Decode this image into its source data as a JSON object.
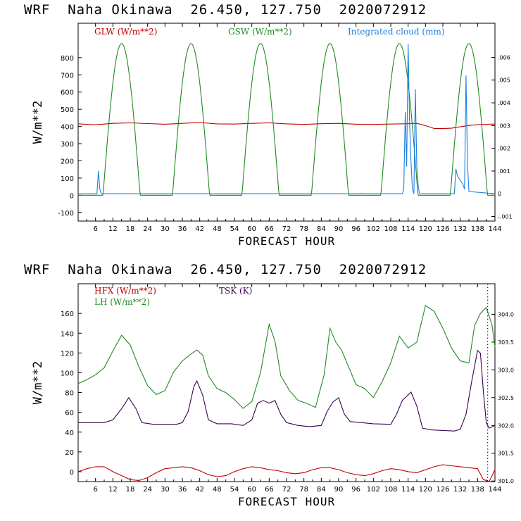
{
  "titles": {
    "top": "WRF  Naha Okinawa  26.450, 127.750  2020072912",
    "bottom": "WRF  Naha Okinawa  26.450, 127.750  2020072912"
  },
  "colors": {
    "red": "#c00000",
    "green": "#218a21",
    "blue": "#1c7fe0",
    "purple": "#3c0050",
    "frame": "#000000"
  },
  "chart_data": [
    {
      "type": "line",
      "xlabel": "FORECAST HOUR",
      "ylabel": "W/m**2",
      "xlim": [
        0,
        144
      ],
      "ylim": [
        -150,
        1000
      ],
      "yticks": [
        "-100",
        "0",
        "100",
        "200",
        "300",
        "400",
        "500",
        "600",
        "700",
        "800"
      ],
      "y2lim": [
        -0.0012,
        0.0075
      ],
      "y2ticks": [
        "-.001",
        "0",
        ".001",
        ".002",
        ".003",
        ".004",
        ".005",
        ".006"
      ],
      "xticks": [
        "6",
        "12",
        "18",
        "24",
        "30",
        "36",
        "42",
        "48",
        "54",
        "60",
        "66",
        "72",
        "78",
        "84",
        "90",
        "96",
        "102",
        "108",
        "114",
        "120",
        "126",
        "132",
        "138",
        "144"
      ],
      "series": [
        {
          "name": "GLW (W/m**2)",
          "axis": "left",
          "color": "#c00000",
          "points": [
            [
              0,
              415
            ],
            [
              6,
              410
            ],
            [
              12,
              418
            ],
            [
              18,
              421
            ],
            [
              24,
              417
            ],
            [
              30,
              413
            ],
            [
              36,
              418
            ],
            [
              42,
              423
            ],
            [
              48,
              415
            ],
            [
              54,
              414
            ],
            [
              60,
              418
            ],
            [
              66,
              421
            ],
            [
              72,
              415
            ],
            [
              78,
              412
            ],
            [
              84,
              416
            ],
            [
              90,
              418
            ],
            [
              96,
              413
            ],
            [
              102,
              412
            ],
            [
              108,
              414
            ],
            [
              114,
              416
            ],
            [
              117,
              418
            ],
            [
              120,
              405
            ],
            [
              123,
              388
            ],
            [
              126,
              388
            ],
            [
              129,
              390
            ],
            [
              132,
              398
            ],
            [
              136,
              408
            ],
            [
              140,
              412
            ],
            [
              144,
              414
            ]
          ]
        },
        {
          "name": "GSW (W/m**2)",
          "axis": "left",
          "color": "#218a21",
          "cycles": {
            "peaks": [
              15,
              39,
              63,
              87,
              111,
              135
            ],
            "halfwidth": 6.4,
            "peak": 882
          }
        },
        {
          "name": "Integrated cloud (mm)",
          "axis": "right",
          "color": "#1c7fe0",
          "points": [
            [
              0,
              0
            ],
            [
              6.5,
              0
            ],
            [
              7,
              0.001
            ],
            [
              7.5,
              0.0002
            ],
            [
              8,
              0
            ],
            [
              97,
              0
            ],
            [
              97.5,
              3e-05
            ],
            [
              98,
              0
            ],
            [
              112,
              0
            ],
            [
              112.5,
              0.0002
            ],
            [
              113,
              0.0036
            ],
            [
              113.5,
              0.0012
            ],
            [
              114,
              0.0066
            ],
            [
              114.5,
              0.0032
            ],
            [
              115,
              0.0014
            ],
            [
              115.5,
              0.0002
            ],
            [
              116,
              0
            ],
            [
              116.5,
              0.0046
            ],
            [
              117,
              0.0012
            ],
            [
              117.5,
              0.0003
            ],
            [
              118,
              0
            ],
            [
              130,
              0
            ],
            [
              130.5,
              0.0011
            ],
            [
              131,
              0.0008
            ],
            [
              132,
              0.0006
            ],
            [
              133,
              0.0004
            ],
            [
              133.5,
              0.0002
            ],
            [
              134,
              0.0052
            ],
            [
              134.5,
              0.0014
            ],
            [
              135,
              0.0001
            ],
            [
              144,
              0
            ]
          ]
        }
      ]
    },
    {
      "type": "line",
      "xlabel": "FORECAST HOUR",
      "ylabel": "W/m**2",
      "xlim": [
        0,
        144
      ],
      "ylim": [
        -10,
        190
      ],
      "yticks": [
        "0",
        "20",
        "40",
        "60",
        "80",
        "100",
        "120",
        "140",
        "160"
      ],
      "y2lim": [
        300.99,
        304.55
      ],
      "y2ticks": [
        "301.0",
        "301.5",
        "302.0",
        "302.5",
        "303.0",
        "303.5",
        "304.0"
      ],
      "xticks": [
        "6",
        "12",
        "18",
        "24",
        "30",
        "36",
        "42",
        "48",
        "54",
        "60",
        "66",
        "72",
        "78",
        "84",
        "90",
        "96",
        "102",
        "108",
        "114",
        "120",
        "126",
        "132",
        "138",
        "144"
      ],
      "series": [
        {
          "name": "HFX (W/m**2)",
          "axis": "left",
          "color": "#c00000",
          "points": [
            [
              0,
              0
            ],
            [
              3,
              3
            ],
            [
              6,
              5
            ],
            [
              9,
              5
            ],
            [
              12,
              0
            ],
            [
              15,
              -4
            ],
            [
              18,
              -8
            ],
            [
              21,
              -9
            ],
            [
              24,
              -6
            ],
            [
              27,
              -1
            ],
            [
              30,
              3
            ],
            [
              33,
              4
            ],
            [
              36,
              5
            ],
            [
              39,
              4
            ],
            [
              42,
              1
            ],
            [
              45,
              -3
            ],
            [
              48,
              -5
            ],
            [
              51,
              -4
            ],
            [
              54,
              0
            ],
            [
              57,
              3
            ],
            [
              60,
              5
            ],
            [
              63,
              4
            ],
            [
              66,
              2
            ],
            [
              69,
              1
            ],
            [
              72,
              -1
            ],
            [
              75,
              -2
            ],
            [
              78,
              -1
            ],
            [
              81,
              2
            ],
            [
              84,
              4
            ],
            [
              87,
              4
            ],
            [
              90,
              2
            ],
            [
              93,
              -1
            ],
            [
              96,
              -3
            ],
            [
              99,
              -4
            ],
            [
              102,
              -2
            ],
            [
              105,
              1
            ],
            [
              108,
              3
            ],
            [
              111,
              2
            ],
            [
              114,
              0
            ],
            [
              117,
              -1
            ],
            [
              120,
              2
            ],
            [
              123,
              5
            ],
            [
              126,
              7
            ],
            [
              129,
              6
            ],
            [
              132,
              5
            ],
            [
              135,
              4
            ],
            [
              138,
              3
            ],
            [
              140,
              -8
            ],
            [
              142,
              -10
            ],
            [
              144,
              2
            ]
          ]
        },
        {
          "name": "LH (W/m**2)",
          "axis": "left",
          "color": "#218a21",
          "points": [
            [
              0,
              89
            ],
            [
              3,
              93
            ],
            [
              6,
              98
            ],
            [
              9,
              105
            ],
            [
              12,
              122
            ],
            [
              15,
              138
            ],
            [
              18,
              128
            ],
            [
              21,
              106
            ],
            [
              24,
              87
            ],
            [
              27,
              78
            ],
            [
              30,
              82
            ],
            [
              33,
              101
            ],
            [
              36,
              112
            ],
            [
              39,
              119
            ],
            [
              41,
              123
            ],
            [
              43,
              118
            ],
            [
              45,
              97
            ],
            [
              48,
              84
            ],
            [
              51,
              80
            ],
            [
              54,
              73
            ],
            [
              57,
              64
            ],
            [
              60,
              71
            ],
            [
              63,
              100
            ],
            [
              66,
              149
            ],
            [
              68,
              132
            ],
            [
              70,
              97
            ],
            [
              73,
              82
            ],
            [
              76,
              72
            ],
            [
              79,
              69
            ],
            [
              82,
              65
            ],
            [
              85,
              98
            ],
            [
              87,
              145
            ],
            [
              89,
              131
            ],
            [
              91,
              123
            ],
            [
              94,
              102
            ],
            [
              96,
              88
            ],
            [
              99,
              84
            ],
            [
              102,
              75
            ],
            [
              105,
              91
            ],
            [
              108,
              110
            ],
            [
              111,
              137
            ],
            [
              114,
              125
            ],
            [
              117,
              131
            ],
            [
              120,
              168
            ],
            [
              123,
              162
            ],
            [
              126,
              145
            ],
            [
              129,
              125
            ],
            [
              132,
              112
            ],
            [
              135,
              110
            ],
            [
              137,
              148
            ],
            [
              139,
              160
            ],
            [
              141,
              166
            ],
            [
              143,
              148
            ],
            [
              144,
              126
            ]
          ]
        },
        {
          "name": "TSK (K)",
          "axis": "right",
          "color": "#3c0050",
          "points": [
            [
              0,
              302.05
            ],
            [
              6,
              302.05
            ],
            [
              9,
              302.05
            ],
            [
              12,
              302.1
            ],
            [
              15,
              302.3
            ],
            [
              17.5,
              302.5
            ],
            [
              20,
              302.3
            ],
            [
              22,
              302.05
            ],
            [
              26,
              302.02
            ],
            [
              30,
              302.02
            ],
            [
              34,
              302.02
            ],
            [
              36,
              302.05
            ],
            [
              38,
              302.25
            ],
            [
              40,
              302.7
            ],
            [
              41,
              302.8
            ],
            [
              43,
              302.55
            ],
            [
              45,
              302.1
            ],
            [
              48,
              302.03
            ],
            [
              53,
              302.03
            ],
            [
              57,
              302.0
            ],
            [
              60,
              302.1
            ],
            [
              62,
              302.4
            ],
            [
              64,
              302.45
            ],
            [
              66,
              302.4
            ],
            [
              68,
              302.45
            ],
            [
              70,
              302.2
            ],
            [
              72,
              302.05
            ],
            [
              76,
              302.0
            ],
            [
              80,
              301.98
            ],
            [
              84,
              302.0
            ],
            [
              86,
              302.25
            ],
            [
              88,
              302.42
            ],
            [
              90,
              302.5
            ],
            [
              92,
              302.2
            ],
            [
              94,
              302.07
            ],
            [
              98,
              302.05
            ],
            [
              102,
              302.03
            ],
            [
              108,
              302.02
            ],
            [
              110,
              302.2
            ],
            [
              112,
              302.45
            ],
            [
              115,
              302.6
            ],
            [
              117,
              302.35
            ],
            [
              119,
              301.95
            ],
            [
              122,
              301.92
            ],
            [
              126,
              301.91
            ],
            [
              130,
              301.9
            ],
            [
              132,
              301.93
            ],
            [
              134,
              302.2
            ],
            [
              136,
              302.8
            ],
            [
              138,
              303.35
            ],
            [
              139,
              303.3
            ],
            [
              140,
              302.6
            ],
            [
              141,
              302.05
            ],
            [
              142,
              301.95
            ],
            [
              144,
              302.0
            ]
          ]
        }
      ]
    }
  ]
}
